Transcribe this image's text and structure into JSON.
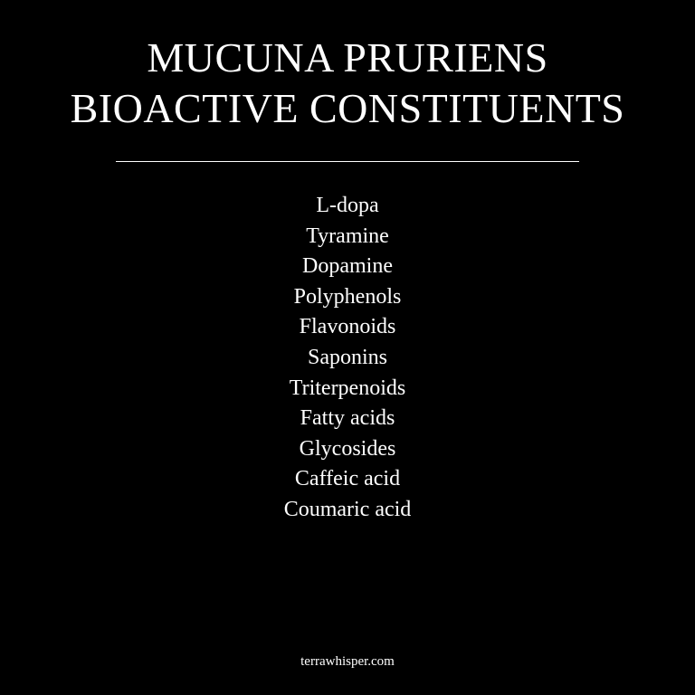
{
  "title": {
    "line1": "MUCUNA PRURIENS",
    "line2": "BIOACTIVE CONSTITUENTS"
  },
  "constituents": [
    "L-dopa",
    "Tyramine",
    "Dopamine",
    "Polyphenols",
    "Flavonoids",
    "Saponins",
    "Triterpenoids",
    "Fatty acids",
    "Glycosides",
    "Caffeic acid",
    "Coumaric acid"
  ],
  "footer": "terrawhisper.com",
  "colors": {
    "background": "#000000",
    "text": "#ffffff"
  }
}
